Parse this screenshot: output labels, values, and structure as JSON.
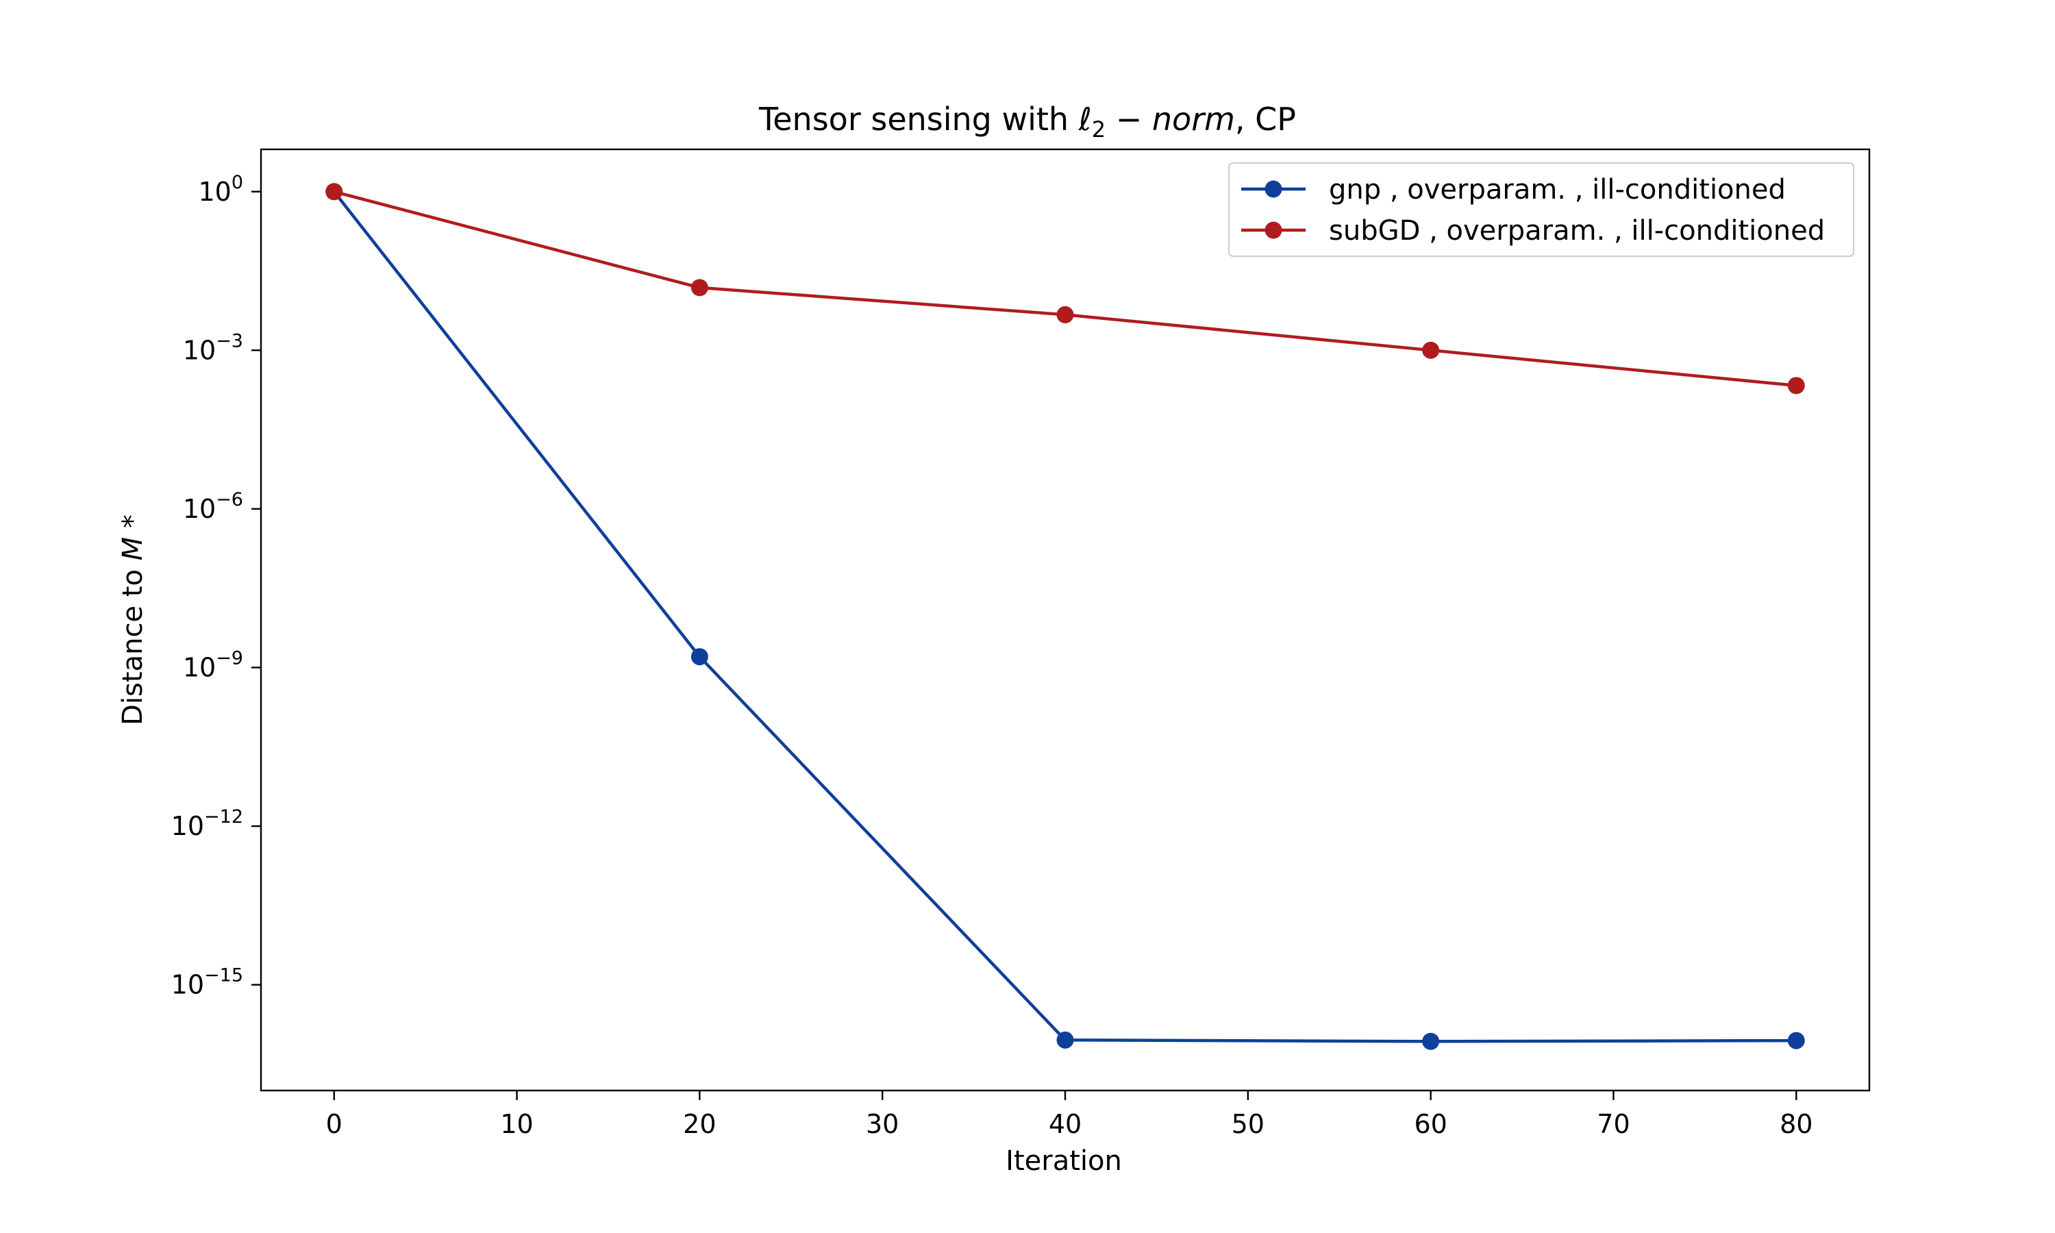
{
  "chart_data": {
    "type": "line",
    "title": {
      "pre": "Tensor sensing with ",
      "ell": "ℓ",
      "sub": "2",
      "minus": " − ",
      "norm": "norm",
      "post": ", CP"
    },
    "xlabel": "Iteration",
    "ylabel": {
      "pre": "Distance to ",
      "var": "M",
      "post": " *"
    },
    "x_scale": "linear",
    "y_scale": "log",
    "xlim": [
      -4,
      84
    ],
    "ylim_exponent": [
      -17,
      0.8
    ],
    "x_ticks": [
      {
        "value": 0,
        "label": "0"
      },
      {
        "value": 10,
        "label": "10"
      },
      {
        "value": 20,
        "label": "20"
      },
      {
        "value": 30,
        "label": "30"
      },
      {
        "value": 40,
        "label": "40"
      },
      {
        "value": 50,
        "label": "50"
      },
      {
        "value": 60,
        "label": "60"
      },
      {
        "value": 70,
        "label": "70"
      },
      {
        "value": 80,
        "label": "80"
      }
    ],
    "y_ticks": [
      {
        "exponent": 0,
        "base": "10",
        "sup": "0"
      },
      {
        "exponent": -3,
        "base": "10",
        "sup": "−3"
      },
      {
        "exponent": -6,
        "base": "10",
        "sup": "−6"
      },
      {
        "exponent": -9,
        "base": "10",
        "sup": "−9"
      },
      {
        "exponent": -12,
        "base": "10",
        "sup": "−12"
      },
      {
        "exponent": -15,
        "base": "10",
        "sup": "−15"
      }
    ],
    "grid": false,
    "legend_position": "top-right",
    "series": [
      {
        "name": "gnp , overparam. , ill-conditioned",
        "color": "#0e3f9a",
        "marker": "circle",
        "x": [
          0,
          20,
          40,
          60,
          80
        ],
        "y": [
          1,
          1.6e-09,
          9e-17,
          8.5e-17,
          8.8e-17
        ]
      },
      {
        "name": "subGD , overparam. , ill-conditioned",
        "color": "#b01c1e",
        "marker": "circle",
        "x": [
          0,
          20,
          40,
          60,
          80
        ],
        "y": [
          1,
          0.0153,
          0.0047,
          0.001,
          0.000215
        ]
      }
    ]
  }
}
